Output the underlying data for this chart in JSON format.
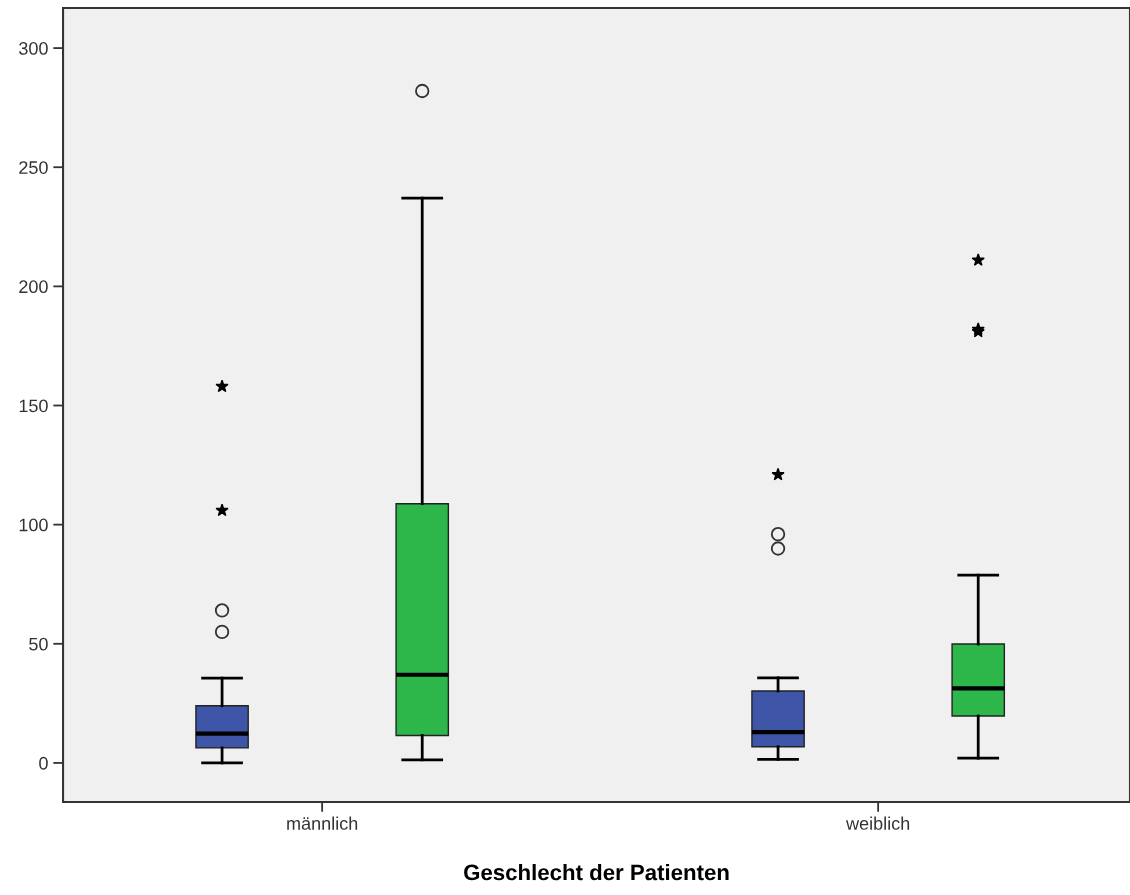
{
  "chart_data": {
    "type": "box",
    "xlabel": "Geschlecht der Patienten",
    "categories": [
      "männlich",
      "weiblich"
    ],
    "ylim": [
      -16.4,
      316.8
    ],
    "yticks": [
      0,
      50,
      100,
      150,
      200,
      250,
      300
    ],
    "grid": false,
    "legend": false,
    "series": [
      {
        "color": "#3f56a8",
        "boxes": [
          {
            "low": 0,
            "q1": 6.3,
            "median": 12.3,
            "q3": 24,
            "high": 35.6,
            "outliers": [
              55,
              64,
              106,
              158
            ]
          },
          {
            "low": 1.5,
            "q1": 6.8,
            "median": 12.9,
            "q3": 30.2,
            "high": 35.7,
            "outliers": [
              90,
              96,
              121
            ]
          }
        ]
      },
      {
        "color": "#2db74a",
        "boxes": [
          {
            "low": 1.3,
            "q1": 11.5,
            "median": 37,
            "q3": 108.8,
            "high": 237,
            "outliers": [
              282
            ]
          },
          {
            "low": 2,
            "q1": 19.7,
            "median": 31.3,
            "q3": 49.9,
            "high": 78.8,
            "outliers": [
              181,
              182,
              211
            ]
          }
        ]
      }
    ]
  }
}
